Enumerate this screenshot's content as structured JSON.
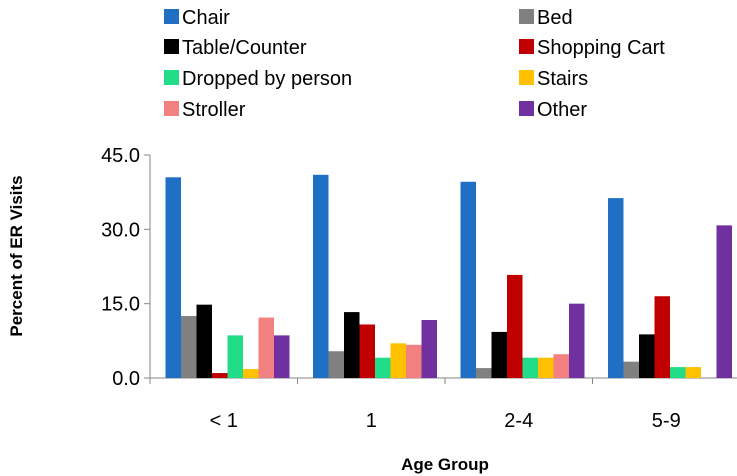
{
  "chart_data": {
    "type": "bar",
    "xlabel": "Age Group",
    "ylabel": "Percent of ER Visits",
    "categories": [
      "< 1",
      "1",
      "2-4",
      "5-9"
    ],
    "ylim": [
      0,
      45
    ],
    "yticks": [
      "0.0",
      "15.0",
      "30.0",
      "45.0"
    ],
    "grid": false,
    "legend_position": "top",
    "series": [
      {
        "name": "Chair",
        "color": "#1f6fc5",
        "values": [
          40.5,
          41.0,
          39.6,
          36.3
        ]
      },
      {
        "name": "Bed",
        "color": "#808080",
        "values": [
          12.5,
          5.4,
          2.0,
          3.3
        ]
      },
      {
        "name": "Table/Counter",
        "color": "#000000",
        "values": [
          14.8,
          13.3,
          9.3,
          8.8
        ]
      },
      {
        "name": "Shopping Cart",
        "color": "#c00000",
        "values": [
          1.0,
          10.8,
          20.8,
          16.5
        ]
      },
      {
        "name": "Dropped by person",
        "color": "#22dd88",
        "values": [
          8.6,
          4.1,
          4.1,
          2.2
        ]
      },
      {
        "name": "Stairs",
        "color": "#ffc000",
        "values": [
          1.8,
          7.0,
          4.1,
          2.2
        ]
      },
      {
        "name": "Stroller",
        "color": "#f28080",
        "values": [
          12.2,
          6.7,
          4.8,
          0
        ]
      },
      {
        "name": "Other",
        "color": "#7030a0",
        "values": [
          8.6,
          11.7,
          15.0,
          30.8
        ]
      }
    ]
  }
}
